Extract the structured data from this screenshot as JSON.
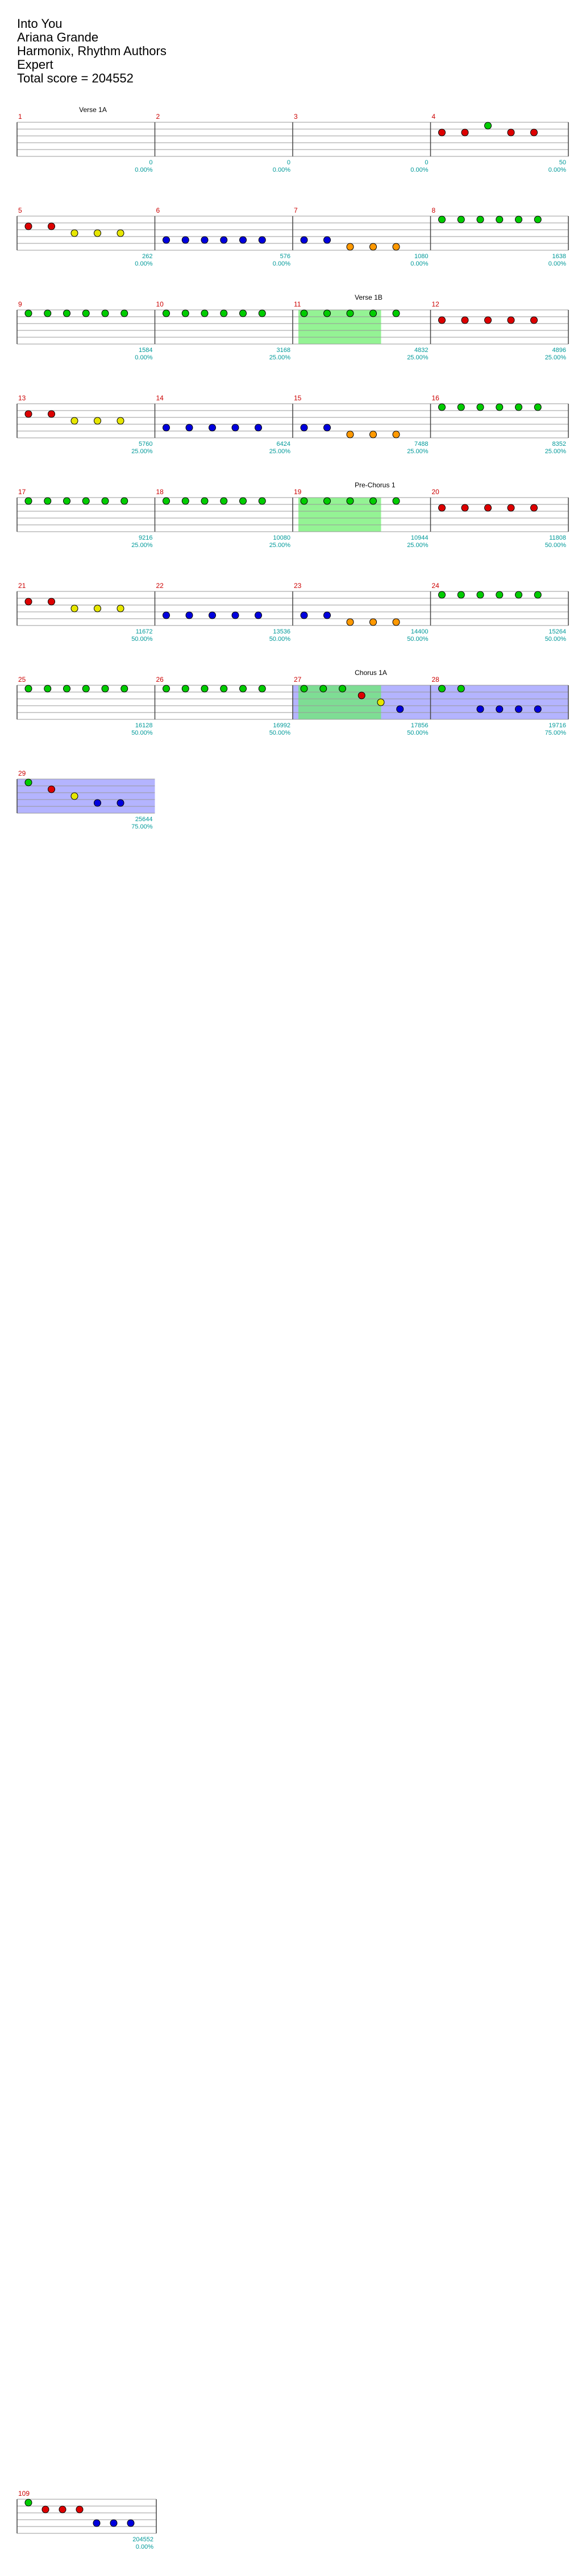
{
  "header": {
    "song_title": "Into You",
    "artist": "Ariana Grande",
    "charter": "Harmonix, Rhythm Authors",
    "difficulty": "Expert",
    "total_score": "Total score = 204552"
  },
  "colors": {
    "green": "#00cc00",
    "red": "#dd0000",
    "yellow": "#e6e600",
    "blue": "#0000dd",
    "orange": "#ff9900",
    "overdrive": "#7777ff",
    "solo": "#66ee66",
    "measure_number": "#cc0000",
    "score_text": "#009999"
  },
  "measures": [
    {
      "n": "1",
      "score": "0",
      "pct": "0.00%",
      "section": "Verse 1A",
      "notes": [],
      "od": false,
      "solo": false
    },
    {
      "n": "2",
      "score": "0",
      "pct": "0.00%",
      "notes": []
    },
    {
      "n": "3",
      "score": "0",
      "pct": "0.00%",
      "notes": []
    },
    {
      "n": "4",
      "score": "50",
      "pct": "0.00%",
      "notes": [
        "r",
        "r",
        "g",
        "r",
        "r"
      ]
    },
    {
      "n": "5",
      "score": "262",
      "pct": "0.00%",
      "notes": [
        "r",
        "r",
        "y",
        "y",
        "y"
      ]
    },
    {
      "n": "6",
      "score": "576",
      "pct": "0.00%",
      "notes": [
        "b",
        "b",
        "b",
        "b",
        "b",
        "b"
      ]
    },
    {
      "n": "7",
      "score": "1080",
      "pct": "0.00%",
      "notes": [
        "b",
        "b",
        "o",
        "o",
        "o"
      ]
    },
    {
      "n": "8",
      "score": "1638",
      "pct": "0.00%",
      "notes": [
        "g",
        "g",
        "g",
        "g",
        "g",
        "g"
      ]
    },
    {
      "n": "9",
      "score": "1584",
      "pct": "0.00%",
      "notes": [
        "g",
        "g",
        "g",
        "g",
        "g",
        "g"
      ]
    },
    {
      "n": "10",
      "score": "3168",
      "pct": "25.00%",
      "notes": [
        "g",
        "g",
        "g",
        "g",
        "g",
        "g"
      ]
    },
    {
      "n": "11",
      "score": "4832",
      "pct": "25.00%",
      "section": "Verse 1B",
      "notes": [
        "g",
        "g",
        "g",
        "g",
        "g"
      ],
      "solo": true
    },
    {
      "n": "12",
      "score": "4896",
      "pct": "25.00%",
      "notes": [
        "r",
        "r",
        "r",
        "r",
        "r"
      ]
    },
    {
      "n": "13",
      "score": "5760",
      "pct": "25.00%",
      "notes": [
        "r",
        "r",
        "y",
        "y",
        "y"
      ]
    },
    {
      "n": "14",
      "score": "6424",
      "pct": "25.00%",
      "notes": [
        "b",
        "b",
        "b",
        "b",
        "b"
      ]
    },
    {
      "n": "15",
      "score": "7488",
      "pct": "25.00%",
      "notes": [
        "b",
        "b",
        "o",
        "o",
        "o"
      ]
    },
    {
      "n": "16",
      "score": "8352",
      "pct": "25.00%",
      "notes": [
        "g",
        "g",
        "g",
        "g",
        "g",
        "g"
      ]
    },
    {
      "n": "17",
      "score": "9216",
      "pct": "25.00%",
      "notes": [
        "g",
        "g",
        "g",
        "g",
        "g",
        "g"
      ]
    },
    {
      "n": "18",
      "score": "10080",
      "pct": "25.00%",
      "notes": [
        "g",
        "g",
        "g",
        "g",
        "g",
        "g"
      ]
    },
    {
      "n": "19",
      "score": "10944",
      "pct": "25.00%",
      "section": "Pre-Chorus 1",
      "notes": [
        "g",
        "g",
        "g",
        "g",
        "g"
      ],
      "solo": true
    },
    {
      "n": "20",
      "score": "11808",
      "pct": "50.00%",
      "notes": [
        "r",
        "r",
        "r",
        "r",
        "r"
      ]
    },
    {
      "n": "21",
      "score": "11672",
      "pct": "50.00%",
      "notes": [
        "r",
        "r",
        "y",
        "y",
        "y"
      ]
    },
    {
      "n": "22",
      "score": "13536",
      "pct": "50.00%",
      "notes": [
        "b",
        "b",
        "b",
        "b",
        "b"
      ]
    },
    {
      "n": "23",
      "score": "14400",
      "pct": "50.00%",
      "notes": [
        "b",
        "b",
        "o",
        "o",
        "o"
      ]
    },
    {
      "n": "24",
      "score": "15264",
      "pct": "50.00%",
      "notes": [
        "g",
        "g",
        "g",
        "g",
        "g",
        "g"
      ]
    },
    {
      "n": "25",
      "score": "16128",
      "pct": "50.00%",
      "notes": [
        "g",
        "g",
        "g",
        "g",
        "g",
        "g"
      ]
    },
    {
      "n": "26",
      "score": "16992",
      "pct": "50.00%",
      "notes": [
        "g",
        "g",
        "g",
        "g",
        "g",
        "g"
      ]
    },
    {
      "n": "27",
      "score": "17856",
      "pct": "50.00%",
      "section": "Chorus 1A",
      "notes": [
        "g",
        "g",
        "g",
        "r",
        "y",
        "b"
      ],
      "solo": true,
      "od": true
    },
    {
      "n": "28",
      "score": "19716",
      "pct": "75.00%",
      "notes": [
        "g",
        "g",
        "b",
        "b",
        "b",
        "b"
      ],
      "od": true
    },
    {
      "n": "29",
      "score": "25644",
      "pct": "75.00%",
      "notes": [
        "g",
        "r",
        "y",
        "b",
        "b"
      ],
      "od": true
    }
  ],
  "footer": {
    "final_score": "204552",
    "final_pct": "0.00%",
    "last_measure": "109"
  }
}
